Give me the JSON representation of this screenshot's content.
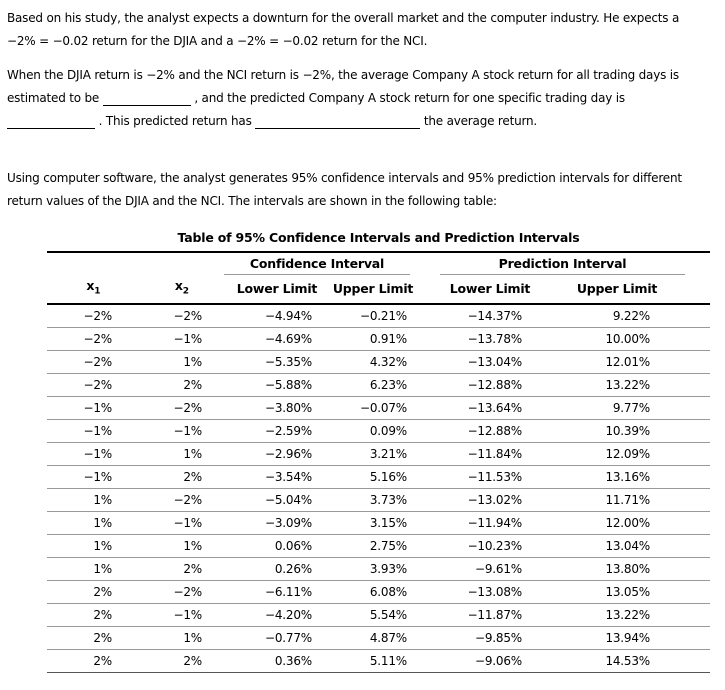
{
  "paragraph1": "Based on his study, the analyst expects a downturn for the overall market and the computer industry. He expects a\n−2% = −0.02 return for the DJIA and a −2% = −0.02 return for the NCI.",
  "paragraph2": {
    "line1": "When the DJIA return is −2% and the NCI return is −2%, the average Company A stock return for all trading days is",
    "line2_pre": "estimated to be ",
    "line2_post": " , and the predicted Company A stock return for one specific trading day is",
    "line3_mid": " . This predicted return has ",
    "line3_end": " the average return."
  },
  "paragraph3": "Using computer software, the analyst generates 95% confidence intervals and 95% prediction intervals for different\nreturn values of the DJIA and the NCI. The intervals are shown in the following table:",
  "table": {
    "title": "Table of 95% Confidence Intervals and Prediction Intervals",
    "groups": {
      "confidence": "Confidence Interval",
      "prediction": "Prediction Interval"
    },
    "cols": {
      "x_base": "x",
      "x1_sub": "1",
      "x2_sub": "2",
      "lower": "Lower Limit",
      "upper": "Upper Limit"
    },
    "rows": [
      [
        "−2%",
        "−2%",
        "−4.94%",
        "−0.21%",
        "−14.37%",
        "9.22%"
      ],
      [
        "−2%",
        "−1%",
        "−4.69%",
        "0.91%",
        "−13.78%",
        "10.00%"
      ],
      [
        "−2%",
        "1%",
        "−5.35%",
        "4.32%",
        "−13.04%",
        "12.01%"
      ],
      [
        "−2%",
        "2%",
        "−5.88%",
        "6.23%",
        "−12.88%",
        "13.22%"
      ],
      [
        "−1%",
        "−2%",
        "−3.80%",
        "−0.07%",
        "−13.64%",
        "9.77%"
      ],
      [
        "−1%",
        "−1%",
        "−2.59%",
        "0.09%",
        "−12.88%",
        "10.39%"
      ],
      [
        "−1%",
        "1%",
        "−2.96%",
        "3.21%",
        "−11.84%",
        "12.09%"
      ],
      [
        "−1%",
        "2%",
        "−3.54%",
        "5.16%",
        "−11.53%",
        "13.16%"
      ],
      [
        "1%",
        "−2%",
        "−5.04%",
        "3.73%",
        "−13.02%",
        "11.71%"
      ],
      [
        "1%",
        "−1%",
        "−3.09%",
        "3.15%",
        "−11.94%",
        "12.00%"
      ],
      [
        "1%",
        "1%",
        "0.06%",
        "2.75%",
        "−10.23%",
        "13.04%"
      ],
      [
        "1%",
        "2%",
        "0.26%",
        "3.93%",
        "−9.61%",
        "13.80%"
      ],
      [
        "2%",
        "−2%",
        "−6.11%",
        "6.08%",
        "−13.08%",
        "13.05%"
      ],
      [
        "2%",
        "−1%",
        "−4.20%",
        "5.54%",
        "−11.87%",
        "13.22%"
      ],
      [
        "2%",
        "1%",
        "−0.77%",
        "4.87%",
        "−9.85%",
        "13.94%"
      ],
      [
        "2%",
        "2%",
        "0.36%",
        "5.11%",
        "−9.06%",
        "14.53%"
      ]
    ]
  }
}
